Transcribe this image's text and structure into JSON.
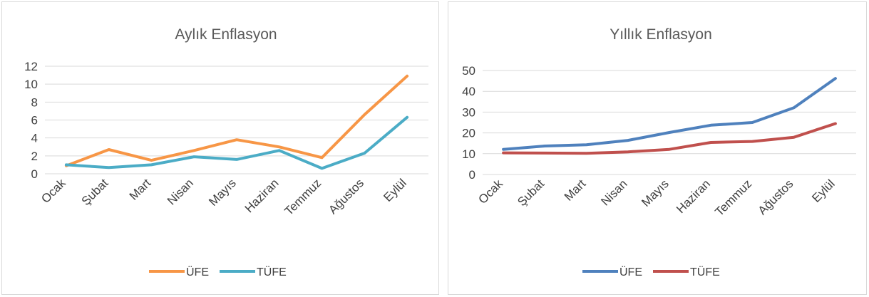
{
  "chart_data": [
    {
      "type": "line",
      "title": "Aylık Enflasyon",
      "categories": [
        "Ocak",
        "Şubat",
        "Mart",
        "Nisan",
        "Mayıs",
        "Haziran",
        "Temmuz",
        "Ağustos",
        "Eylül"
      ],
      "ylim": [
        0,
        12
      ],
      "yticks": [
        "0",
        "2",
        "4",
        "6",
        "8",
        "10",
        "12"
      ],
      "grid": true,
      "legend": "bottom",
      "series": [
        {
          "name": "ÜFE",
          "color": "#F79646",
          "values": [
            0.9,
            2.7,
            1.5,
            2.6,
            3.8,
            3.0,
            1.8,
            6.6,
            10.9
          ]
        },
        {
          "name": "TÜFE",
          "color": "#4BACC6",
          "values": [
            1.0,
            0.7,
            1.0,
            1.9,
            1.6,
            2.6,
            0.6,
            2.3,
            6.3
          ]
        }
      ]
    },
    {
      "type": "line",
      "title": "Yıllık Enflasyon",
      "categories": [
        "Ocak",
        "Şubat",
        "Mart",
        "Nisan",
        "Mayıs",
        "Haziran",
        "Temmuz",
        "Ağustos",
        "Eylül"
      ],
      "ylim": [
        0,
        50
      ],
      "yticks": [
        "0",
        "10",
        "20",
        "30",
        "40",
        "50"
      ],
      "grid": true,
      "legend": "bottom",
      "series": [
        {
          "name": "ÜFE",
          "color": "#4F81BD",
          "values": [
            12.1,
            13.7,
            14.3,
            16.4,
            20.2,
            23.7,
            25.0,
            32.1,
            46.2
          ]
        },
        {
          "name": "TÜFE",
          "color": "#C0504D",
          "values": [
            10.4,
            10.3,
            10.2,
            10.9,
            12.1,
            15.4,
            15.9,
            17.9,
            24.5
          ]
        }
      ]
    }
  ]
}
